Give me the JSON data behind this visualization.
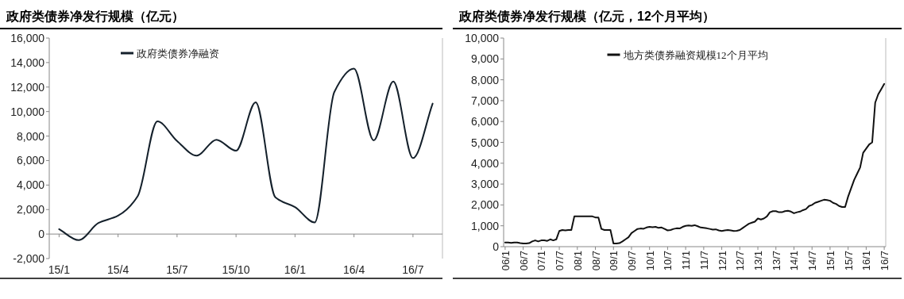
{
  "chart_data": [
    {
      "type": "line",
      "title": "政府类债券净发行规模（亿元）",
      "categories": [
        "15/1",
        null,
        null,
        "15/4",
        null,
        null,
        "15/7",
        null,
        null,
        "15/10",
        null,
        null,
        "16/1",
        null,
        null,
        "16/4",
        null,
        null,
        "16/7",
        null
      ],
      "series": [
        {
          "name": "政府类债券净融资",
          "color": "#14202b",
          "values": [
            400,
            -500,
            900,
            1500,
            3100,
            9200,
            7600,
            6400,
            7700,
            6800,
            10750,
            3000,
            2200,
            950,
            11600,
            13500,
            7650,
            12450,
            6200,
            10650
          ]
        }
      ],
      "ylim": [
        -2000,
        16000
      ],
      "yticks": [
        {
          "value": -2000,
          "label": "-2,000"
        },
        0,
        {
          "value": 2000,
          "label": "2,000"
        },
        {
          "value": 4000,
          "label": "4,000"
        },
        {
          "value": 6000,
          "label": "6,000"
        },
        {
          "value": 8000,
          "label": "8,000"
        },
        {
          "value": 10000,
          "label": "10,000"
        },
        {
          "value": 12000,
          "label": "12,000"
        },
        {
          "value": 14000,
          "label": "14,000"
        },
        {
          "value": 16000,
          "label": "16,000"
        }
      ],
      "ref_lines": [
        {
          "axis": "y",
          "value": 0,
          "color": "#888888"
        }
      ],
      "legend": "top left",
      "grid": false,
      "marker": "none",
      "line_style": "solid"
    },
    {
      "type": "line",
      "title": "政府类债券净发行规模（亿元，12个月平均）",
      "categories": [
        "06/1",
        null,
        null,
        null,
        null,
        null,
        "06/7",
        null,
        null,
        null,
        null,
        null,
        "07/1",
        null,
        null,
        null,
        null,
        null,
        "07/7",
        null,
        null,
        null,
        null,
        null,
        "08/1",
        null,
        null,
        null,
        null,
        null,
        "08/7",
        null,
        null,
        null,
        null,
        null,
        "09/1",
        null,
        null,
        null,
        null,
        null,
        "09/7",
        null,
        null,
        null,
        null,
        null,
        "10/1",
        null,
        null,
        null,
        null,
        null,
        "10/7",
        null,
        null,
        null,
        null,
        null,
        "11/1",
        null,
        null,
        null,
        null,
        null,
        "11/7",
        null,
        null,
        null,
        null,
        null,
        "12/1",
        null,
        null,
        null,
        null,
        null,
        "12/7",
        null,
        null,
        null,
        null,
        null,
        "13/1",
        null,
        null,
        null,
        null,
        null,
        "13/7",
        null,
        null,
        null,
        null,
        null,
        "14/1",
        null,
        null,
        null,
        null,
        null,
        "14/7",
        null,
        null,
        null,
        null,
        null,
        "15/1",
        null,
        null,
        null,
        null,
        null,
        "15/7",
        null,
        null,
        null,
        null,
        null,
        "16/1",
        null,
        null,
        null,
        null,
        null,
        "16/7"
      ],
      "series": [
        {
          "name": "地方类债券融资规模12个月平均",
          "color": "#111111",
          "values": [
            200,
            200,
            180,
            200,
            200,
            170,
            150,
            150,
            170,
            250,
            300,
            250,
            300,
            300,
            280,
            350,
            300,
            350,
            750,
            800,
            780,
            800,
            800,
            1450,
            1450,
            1450,
            1450,
            1450,
            1450,
            1450,
            1400,
            1400,
            850,
            800,
            800,
            800,
            150,
            150,
            170,
            250,
            350,
            450,
            650,
            750,
            850,
            870,
            860,
            920,
            950,
            930,
            950,
            900,
            920,
            850,
            780,
            800,
            850,
            880,
            870,
            950,
            1000,
            1020,
            1000,
            1030,
            980,
            920,
            900,
            880,
            850,
            820,
            830,
            780,
            750,
            780,
            800,
            780,
            750,
            760,
            800,
            900,
            1000,
            1100,
            1150,
            1200,
            1350,
            1300,
            1350,
            1450,
            1650,
            1700,
            1700,
            1650,
            1650,
            1700,
            1720,
            1680,
            1600,
            1650,
            1680,
            1750,
            1800,
            1950,
            2000,
            2100,
            2150,
            2200,
            2250,
            2230,
            2200,
            2100,
            2050,
            1950,
            1900,
            1900,
            2400,
            2800,
            3200,
            3500,
            3800,
            4500,
            4700,
            4900,
            5000,
            6900,
            7300,
            7550,
            7800
          ]
        }
      ],
      "ylim": [
        0,
        10000
      ],
      "yticks": [
        0,
        {
          "value": 1000,
          "label": "1,000"
        },
        {
          "value": 2000,
          "label": "2,000"
        },
        {
          "value": 3000,
          "label": "3,000"
        },
        {
          "value": 4000,
          "label": "4,000"
        },
        {
          "value": 5000,
          "label": "5,000"
        },
        {
          "value": 6000,
          "label": "6,000"
        },
        {
          "value": 7000,
          "label": "7,000"
        },
        {
          "value": 8000,
          "label": "8,000"
        },
        {
          "value": 9000,
          "label": "9,000"
        },
        {
          "value": 10000,
          "label": "10,000"
        }
      ],
      "legend": "top",
      "grid": false,
      "marker": "none",
      "line_style": "solid"
    }
  ]
}
